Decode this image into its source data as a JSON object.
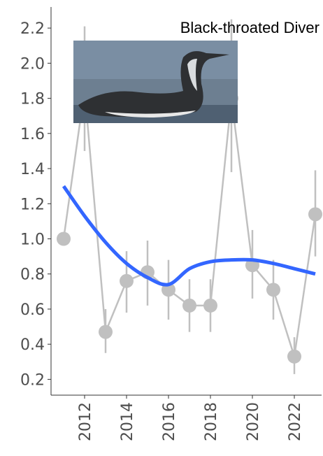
{
  "chart_data": {
    "type": "scatter",
    "title": "Black-throated Diver",
    "x": [
      2011,
      2012,
      2013,
      2014,
      2015,
      2016,
      2017,
      2018,
      2019,
      2020,
      2021,
      2022,
      2023
    ],
    "series": [
      {
        "color": "#c0c0c0",
        "values": [
          1.0,
          1.85,
          0.47,
          0.76,
          0.81,
          0.71,
          0.62,
          0.62,
          1.8,
          0.85,
          0.71,
          0.33,
          1.14
        ],
        "lower": [
          null,
          1.5,
          0.35,
          0.58,
          0.62,
          0.54,
          0.47,
          0.47,
          1.38,
          0.66,
          0.54,
          0.23,
          0.9
        ],
        "upper": [
          null,
          2.21,
          0.6,
          0.93,
          0.99,
          0.88,
          0.77,
          0.77,
          2.25,
          1.05,
          0.88,
          0.44,
          1.39
        ]
      },
      {
        "color": "#3366ff",
        "values": [
          1.3,
          1.13,
          0.98,
          0.86,
          0.78,
          0.74,
          0.83,
          0.87,
          0.88,
          0.88,
          0.86,
          0.83,
          0.8
        ]
      }
    ],
    "xlim": [
      2010.4,
      2023.3
    ],
    "ylim": [
      0.11,
      2.32
    ],
    "xticks": [
      2012,
      2014,
      2016,
      2018,
      2020,
      2022
    ],
    "yticks": [
      0.2,
      0.4,
      0.6,
      0.8,
      {
        "value": 1,
        "label": "1.0"
      },
      1.2,
      1.4,
      1.6,
      1.8,
      {
        "value": 2,
        "label": "2.0"
      },
      2.2
    ]
  }
}
